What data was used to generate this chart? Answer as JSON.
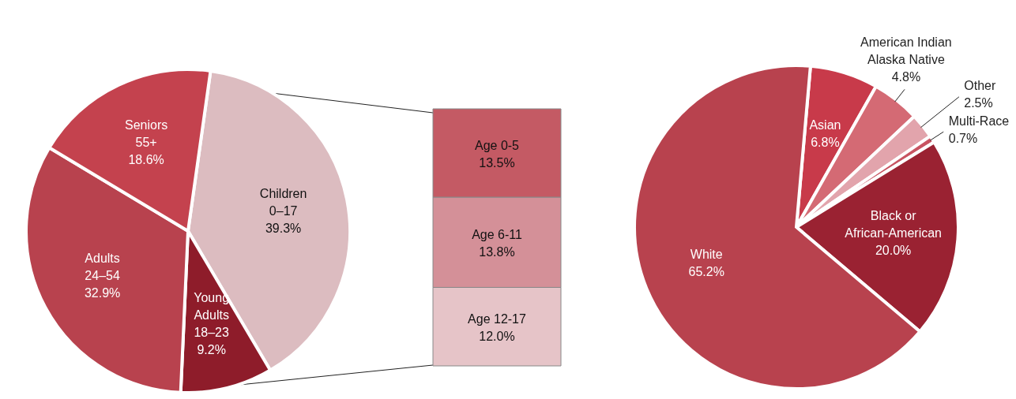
{
  "chart_data": [
    {
      "type": "pie",
      "categories": [
        "Children\n0–17",
        "Young\nAdults\n18–23",
        "Adults\n24–54",
        "Seniors\n55+"
      ],
      "values": [
        39.3,
        9.2,
        32.9,
        18.6
      ],
      "value_labels": [
        "39.3%",
        "9.2%",
        "32.9%",
        "18.6%"
      ],
      "colors": [
        "#dcbcc0",
        "#8e1c2a",
        "#b8424e",
        "#c4424e"
      ],
      "legend": false
    },
    {
      "type": "bar",
      "stacked": true,
      "categories": [
        null
      ],
      "series": [
        {
          "name": "Age 12-17",
          "color": "#e6c4c8",
          "values": [
            12.0
          ],
          "value_labels": [
            "12.0%"
          ]
        },
        {
          "name": "Age 6-11",
          "color": "#d49098",
          "values": [
            13.8
          ],
          "value_labels": [
            "13.8%"
          ]
        },
        {
          "name": "Age 0-5",
          "color": "#c45a64",
          "values": [
            13.5
          ],
          "value_labels": [
            "13.5%"
          ]
        }
      ],
      "legend": false
    },
    {
      "type": "pie",
      "categories": [
        "Asian",
        "American Indian\nAlaska Native",
        "Other",
        "Multi-Race",
        "Black or\nAfrican-American",
        "White"
      ],
      "values": [
        6.8,
        4.8,
        2.5,
        0.7,
        20.0,
        65.2
      ],
      "value_labels": [
        "6.8%",
        "4.8%",
        "2.5%",
        "0.7%",
        "20.0%",
        "65.2%"
      ],
      "colors": [
        "#c83a4a",
        "#d46a74",
        "#e2a4ac",
        "#c85462",
        "#9a2232",
        "#b8424e"
      ],
      "legend": false
    }
  ]
}
